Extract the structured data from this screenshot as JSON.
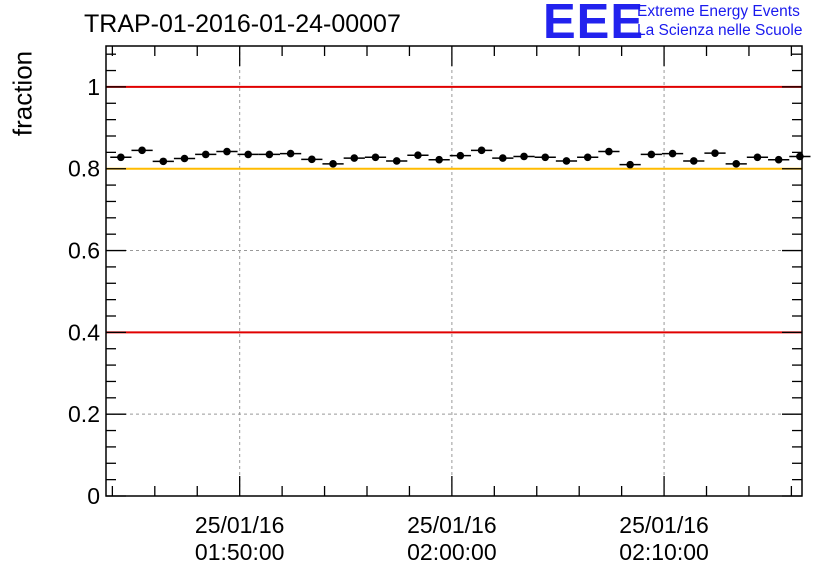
{
  "title": "TRAP-01-2016-01-24-00007",
  "logo": {
    "mark": "EEE",
    "line1": "Extreme Energy Events",
    "line2": "La Scienza nelle Scuole",
    "color": "#2222ee"
  },
  "chart_data": {
    "type": "scatter",
    "ylabel": "fraction",
    "xlabel": "",
    "ylim": [
      0,
      1.1
    ],
    "y_ticks": [
      "0",
      "0.2",
      "0.4",
      "0.6",
      "0.8",
      "1"
    ],
    "x_ticks": [
      {
        "date": "25/01/16",
        "time": "01:50:00"
      },
      {
        "date": "25/01/16",
        "time": "02:00:00"
      },
      {
        "date": "25/01/16",
        "time": "02:10:00"
      }
    ],
    "grid": true,
    "reference_lines": [
      {
        "y": 1.0,
        "color": "#e00000"
      },
      {
        "y": 0.8,
        "color": "#ffbb00"
      },
      {
        "y": 0.4,
        "color": "#e00000"
      }
    ],
    "x_range_minutes": [
      -6.3,
      26.5
    ],
    "series": [
      {
        "marker": "filled-circle",
        "color": "#000000",
        "x_minutes": [
          -5.6,
          -4.6,
          -3.6,
          -2.6,
          -1.6,
          -0.6,
          0.4,
          1.4,
          2.4,
          3.4,
          4.4,
          5.4,
          6.4,
          7.4,
          8.4,
          9.4,
          10.4,
          11.4,
          12.4,
          13.4,
          14.4,
          15.4,
          16.4,
          17.4,
          18.4,
          19.4,
          20.4,
          21.4,
          22.4,
          23.4,
          24.4,
          25.4,
          26.4
        ],
        "values": [
          0.828,
          0.845,
          0.818,
          0.825,
          0.835,
          0.842,
          0.835,
          0.835,
          0.837,
          0.823,
          0.812,
          0.826,
          0.828,
          0.819,
          0.833,
          0.822,
          0.832,
          0.845,
          0.826,
          0.83,
          0.828,
          0.819,
          0.828,
          0.842,
          0.81,
          0.835,
          0.837,
          0.819,
          0.838,
          0.812,
          0.828,
          0.822,
          0.83
        ]
      }
    ]
  }
}
